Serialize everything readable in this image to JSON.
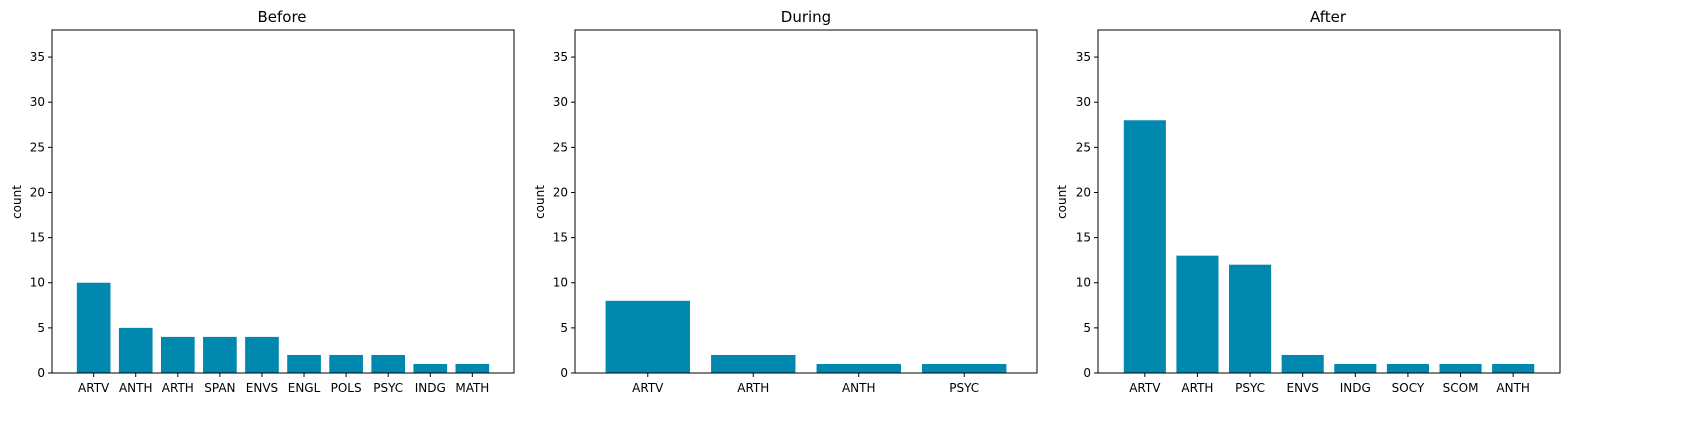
{
  "chart_data": [
    {
      "type": "bar",
      "title": "Before",
      "xlabel": "",
      "ylabel": "count",
      "ylim": [
        0,
        38
      ],
      "yticks": [
        0,
        5,
        10,
        15,
        20,
        25,
        30,
        35
      ],
      "grid": false,
      "color": "#0088AE",
      "categories": [
        "ARTV",
        "ANTH",
        "ARTH",
        "SPAN",
        "ENVS",
        "ENGL",
        "POLS",
        "PSYC",
        "INDG",
        "MATH"
      ],
      "values": [
        10,
        5,
        4,
        4,
        4,
        2,
        2,
        2,
        1,
        1
      ]
    },
    {
      "type": "bar",
      "title": "During",
      "xlabel": "",
      "ylabel": "count",
      "ylim": [
        0,
        38
      ],
      "yticks": [
        0,
        5,
        10,
        15,
        20,
        25,
        30,
        35
      ],
      "grid": false,
      "color": "#0088AE",
      "categories": [
        "ARTV",
        "ARTH",
        "ANTH",
        "PSYC"
      ],
      "values": [
        8,
        2,
        1,
        1
      ]
    },
    {
      "type": "bar",
      "title": "After",
      "xlabel": "",
      "ylabel": "count",
      "ylim": [
        0,
        38
      ],
      "yticks": [
        0,
        5,
        10,
        15,
        20,
        25,
        30,
        35
      ],
      "grid": false,
      "color": "#0088AE",
      "categories": [
        "ARTV",
        "ARTH",
        "PSYC",
        "ENVS",
        "INDG",
        "SOCY",
        "SCOM",
        "ANTH"
      ],
      "values": [
        28,
        13,
        12,
        2,
        1,
        1,
        1,
        1
      ]
    }
  ]
}
